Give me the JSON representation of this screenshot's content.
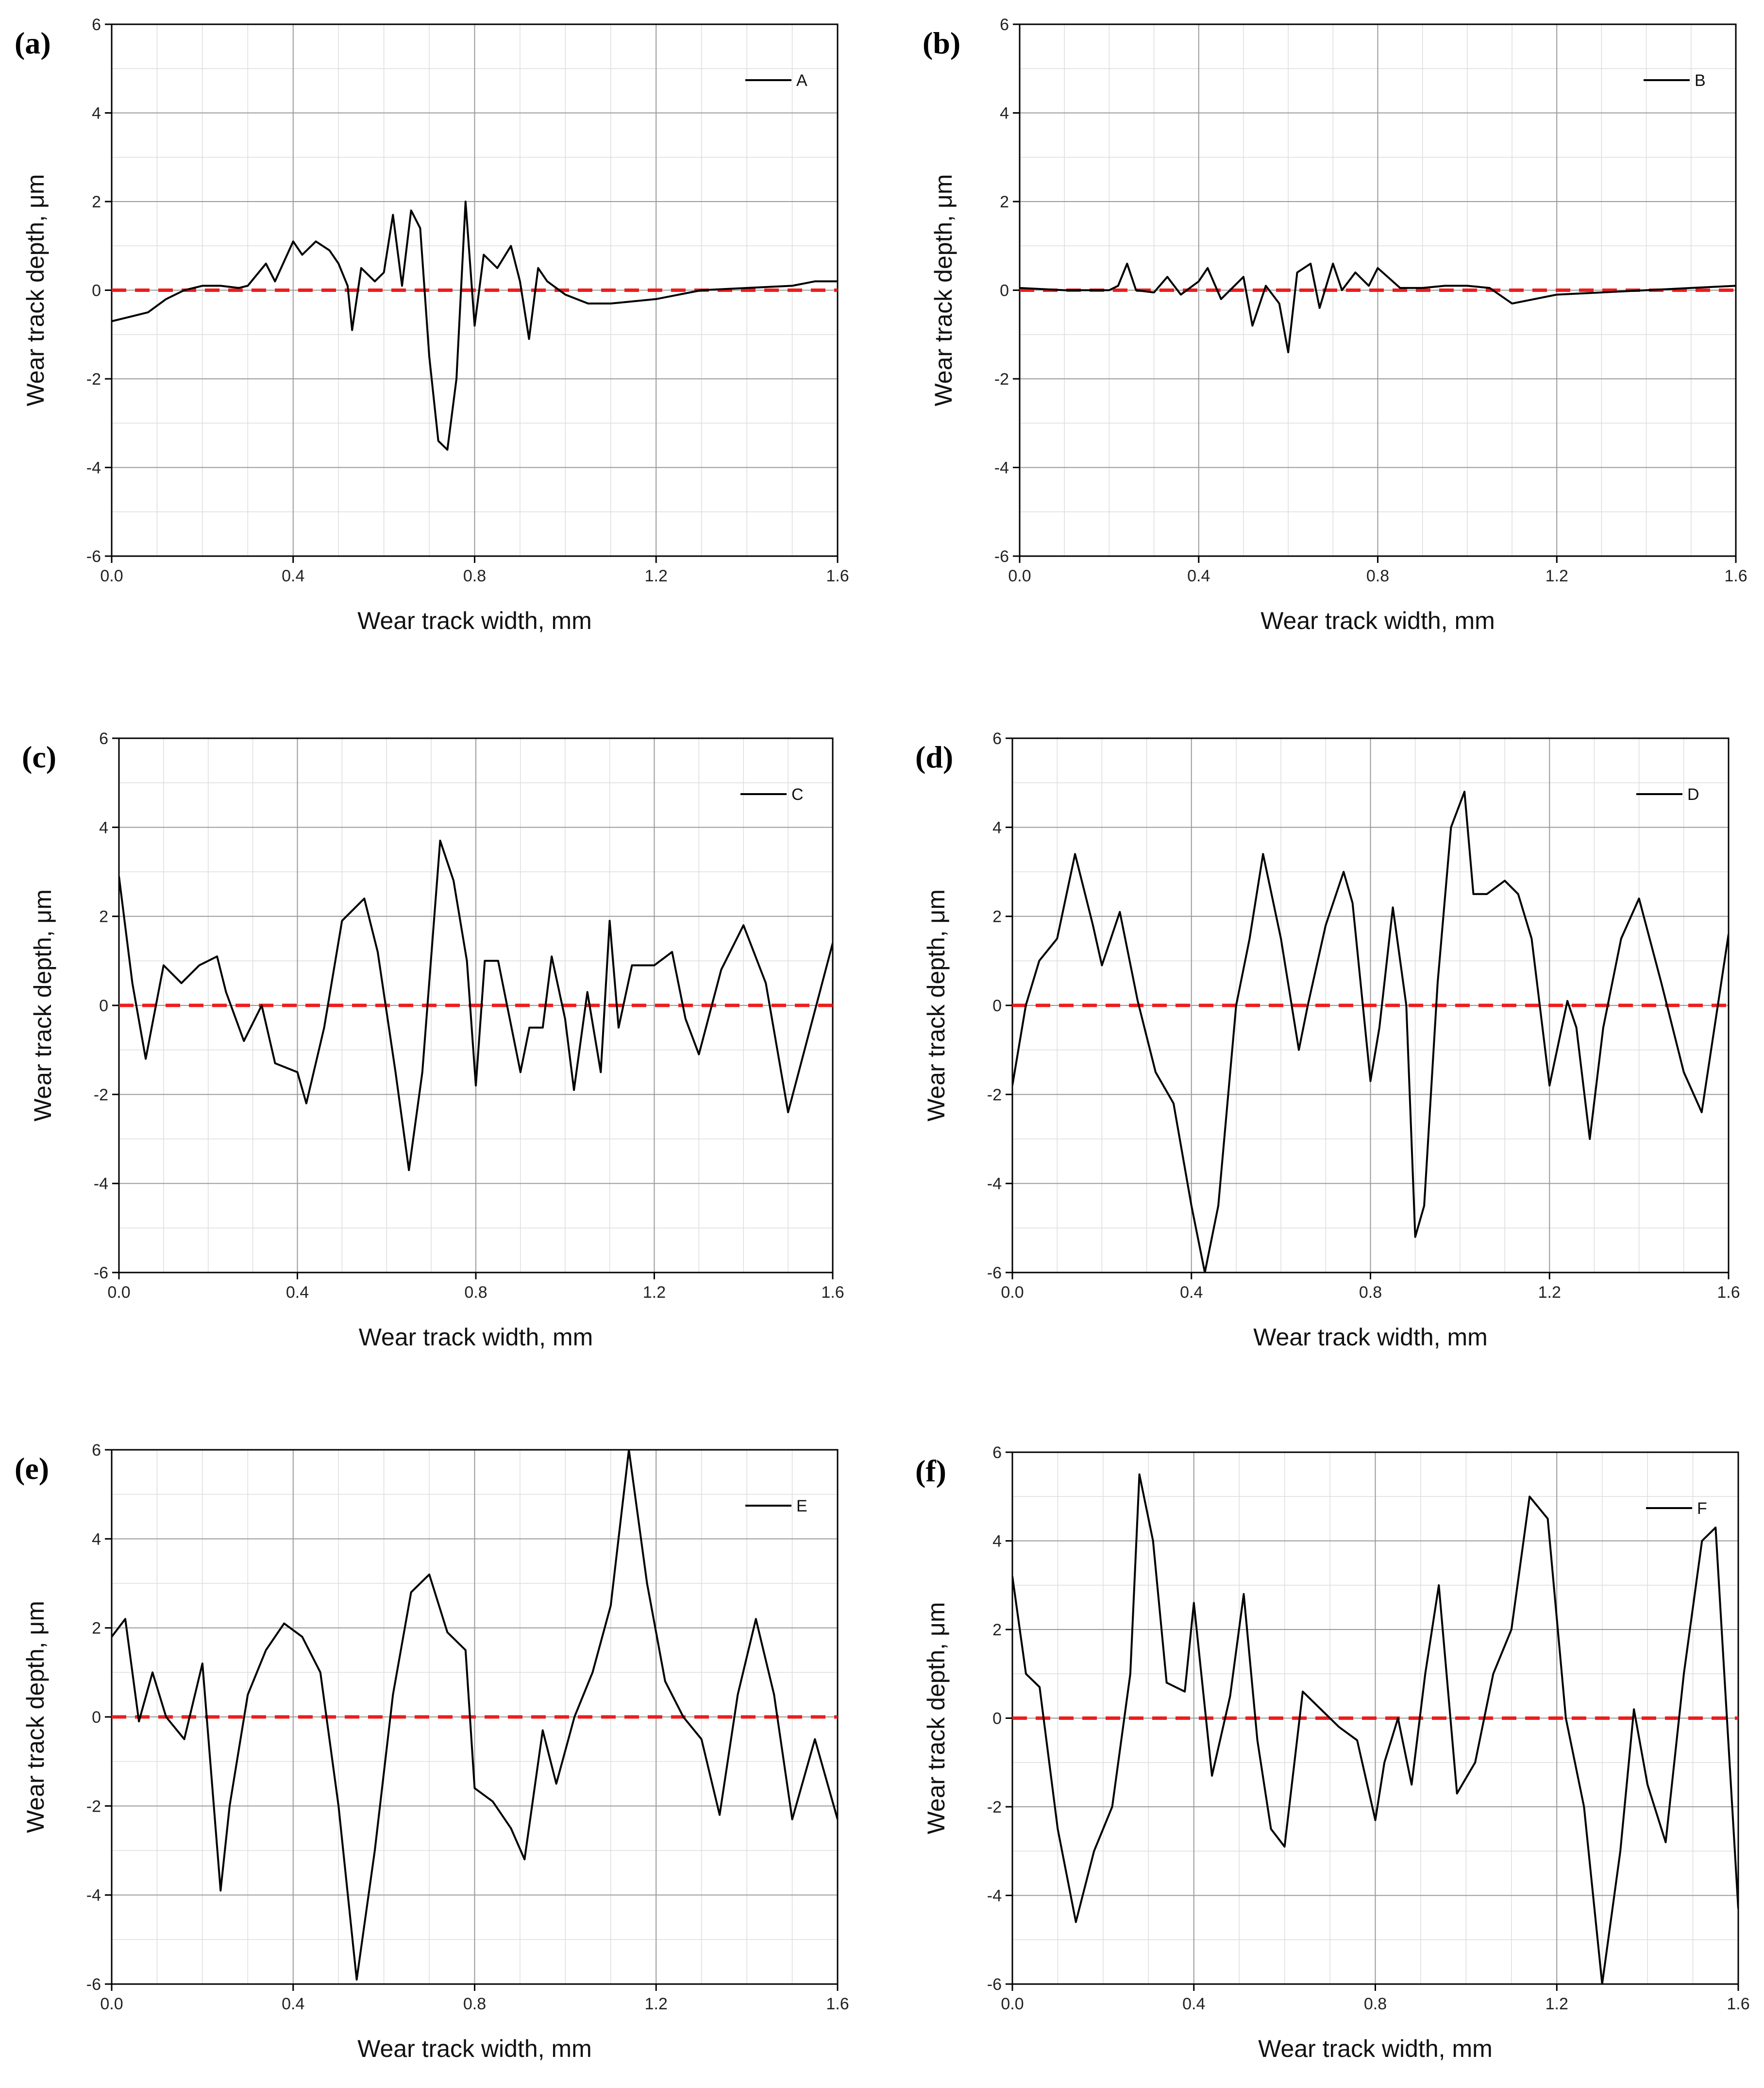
{
  "chart_data": [
    {
      "panel": "(a)",
      "type": "line",
      "legend": "A",
      "xlabel": "Wear track width, mm",
      "ylabel": "Wear track depth, μm",
      "xlim": [
        0,
        1.6
      ],
      "ylim": [
        -6,
        6
      ],
      "xticks": [
        "0.0",
        "0.4",
        "0.8",
        "1.2",
        "1.6"
      ],
      "yticks": [
        "-6",
        "-4",
        "-2",
        "0",
        "2",
        "4",
        "6"
      ],
      "reference_line": 0,
      "x": [
        0,
        0.04,
        0.08,
        0.12,
        0.16,
        0.2,
        0.24,
        0.28,
        0.3,
        0.34,
        0.36,
        0.4,
        0.42,
        0.45,
        0.48,
        0.5,
        0.52,
        0.53,
        0.55,
        0.58,
        0.6,
        0.62,
        0.64,
        0.66,
        0.68,
        0.7,
        0.72,
        0.74,
        0.76,
        0.78,
        0.8,
        0.82,
        0.85,
        0.88,
        0.9,
        0.92,
        0.94,
        0.96,
        1.0,
        1.05,
        1.1,
        1.2,
        1.3,
        1.4,
        1.5,
        1.55,
        1.6
      ],
      "values": [
        -0.7,
        -0.6,
        -0.5,
        -0.2,
        0,
        0.1,
        0.1,
        0.05,
        0.1,
        0.6,
        0.2,
        1.1,
        0.8,
        1.1,
        0.9,
        0.6,
        0.1,
        -0.9,
        0.5,
        0.2,
        0.4,
        1.7,
        0.1,
        1.8,
        1.4,
        -1.5,
        -3.4,
        -3.6,
        -2.0,
        2.0,
        -0.8,
        0.8,
        0.5,
        1.0,
        0.2,
        -1.1,
        0.5,
        0.2,
        -0.1,
        -0.3,
        -0.3,
        -0.2,
        0,
        0.05,
        0.1,
        0.2,
        0.2
      ]
    },
    {
      "panel": "(b)",
      "type": "line",
      "legend": "B",
      "xlabel": "Wear track width, mm",
      "ylabel": "Wear track depth, μm",
      "xlim": [
        0,
        1.6
      ],
      "ylim": [
        -6,
        6
      ],
      "xticks": [
        "0.0",
        "0.4",
        "0.8",
        "1.2",
        "1.6"
      ],
      "yticks": [
        "-6",
        "-4",
        "-2",
        "0",
        "2",
        "4",
        "6"
      ],
      "reference_line": 0,
      "x": [
        0,
        0.1,
        0.2,
        0.22,
        0.24,
        0.26,
        0.3,
        0.33,
        0.36,
        0.4,
        0.42,
        0.45,
        0.5,
        0.52,
        0.55,
        0.58,
        0.6,
        0.62,
        0.65,
        0.67,
        0.7,
        0.72,
        0.75,
        0.78,
        0.8,
        0.85,
        0.9,
        0.95,
        1.0,
        1.05,
        1.1,
        1.15,
        1.2,
        1.3,
        1.4,
        1.5,
        1.6
      ],
      "values": [
        0.05,
        0,
        0,
        0.1,
        0.6,
        0,
        -0.05,
        0.3,
        -0.1,
        0.2,
        0.5,
        -0.2,
        0.3,
        -0.8,
        0.1,
        -0.3,
        -1.4,
        0.4,
        0.6,
        -0.4,
        0.6,
        0,
        0.4,
        0.1,
        0.5,
        0.05,
        0.05,
        0.1,
        0.1,
        0.05,
        -0.3,
        -0.2,
        -0.1,
        -0.05,
        0,
        0.05,
        0.1
      ]
    },
    {
      "panel": "(c)",
      "type": "line",
      "legend": "C",
      "xlabel": "Wear track width, mm",
      "ylabel": "Wear track depth, μm",
      "xlim": [
        0,
        1.6
      ],
      "ylim": [
        -6,
        6
      ],
      "xticks": [
        "0.0",
        "0.4",
        "0.8",
        "1.2",
        "1.6"
      ],
      "yticks": [
        "-6",
        "-4",
        "-2",
        "0",
        "2",
        "4",
        "6"
      ],
      "reference_line": 0,
      "x": [
        0,
        0.03,
        0.06,
        0.1,
        0.14,
        0.18,
        0.22,
        0.24,
        0.28,
        0.32,
        0.35,
        0.4,
        0.42,
        0.46,
        0.5,
        0.55,
        0.58,
        0.62,
        0.65,
        0.68,
        0.72,
        0.75,
        0.78,
        0.8,
        0.82,
        0.85,
        0.88,
        0.9,
        0.92,
        0.95,
        0.97,
        1.0,
        1.02,
        1.05,
        1.08,
        1.1,
        1.12,
        1.15,
        1.2,
        1.24,
        1.27,
        1.3,
        1.35,
        1.4,
        1.45,
        1.5,
        1.55,
        1.6
      ],
      "values": [
        2.9,
        0.5,
        -1.2,
        0.9,
        0.5,
        0.9,
        1.1,
        0.3,
        -0.8,
        0,
        -1.3,
        -1.5,
        -2.2,
        -0.5,
        1.9,
        2.4,
        1.2,
        -1.5,
        -3.7,
        -1.5,
        3.7,
        2.8,
        1.0,
        -1.8,
        1.0,
        1.0,
        -0.5,
        -1.5,
        -0.5,
        -0.5,
        1.1,
        -0.3,
        -1.9,
        0.3,
        -1.5,
        1.9,
        -0.5,
        0.9,
        0.9,
        1.2,
        -0.3,
        -1.1,
        0.8,
        1.8,
        0.5,
        -2.4,
        -0.5,
        1.4
      ]
    },
    {
      "panel": "(d)",
      "type": "line",
      "legend": "D",
      "xlabel": "Wear track width, mm",
      "ylabel": "Wear track depth, μm",
      "xlim": [
        0,
        1.6
      ],
      "ylim": [
        -6,
        6
      ],
      "xticks": [
        "0.0",
        "0.4",
        "0.8",
        "1.2",
        "1.6"
      ],
      "yticks": [
        "-6",
        "-4",
        "-2",
        "0",
        "2",
        "4",
        "6"
      ],
      "reference_line": 0,
      "x": [
        0,
        0.03,
        0.06,
        0.1,
        0.14,
        0.18,
        0.2,
        0.24,
        0.28,
        0.32,
        0.36,
        0.4,
        0.43,
        0.46,
        0.5,
        0.53,
        0.56,
        0.6,
        0.64,
        0.66,
        0.7,
        0.74,
        0.76,
        0.8,
        0.82,
        0.85,
        0.88,
        0.9,
        0.92,
        0.95,
        0.98,
        1.01,
        1.03,
        1.06,
        1.1,
        1.13,
        1.16,
        1.2,
        1.24,
        1.26,
        1.29,
        1.32,
        1.36,
        1.4,
        1.45,
        1.5,
        1.54,
        1.6
      ],
      "values": [
        -1.8,
        0,
        1.0,
        1.5,
        3.4,
        1.8,
        0.9,
        2.1,
        0.1,
        -1.5,
        -2.2,
        -4.5,
        -6.0,
        -4.5,
        0,
        1.5,
        3.4,
        1.5,
        -1.0,
        0,
        1.8,
        3.0,
        2.3,
        -1.7,
        -0.5,
        2.2,
        0,
        -5.2,
        -4.5,
        0.5,
        4.0,
        4.8,
        2.5,
        2.5,
        2.8,
        2.5,
        1.5,
        -1.8,
        0.1,
        -0.5,
        -3.0,
        -0.5,
        1.5,
        2.4,
        0.5,
        -1.5,
        -2.4,
        1.6
      ]
    },
    {
      "panel": "(e)",
      "type": "line",
      "legend": "E",
      "xlabel": "Wear track width, mm",
      "ylabel": "Wear track depth, μm",
      "xlim": [
        0,
        1.6
      ],
      "ylim": [
        -6,
        6
      ],
      "xticks": [
        "0.0",
        "0.4",
        "0.8",
        "1.2",
        "1.6"
      ],
      "yticks": [
        "-6",
        "-4",
        "-2",
        "0",
        "2",
        "4",
        "6"
      ],
      "reference_line": 0,
      "x": [
        0,
        0.03,
        0.06,
        0.09,
        0.12,
        0.16,
        0.2,
        0.24,
        0.26,
        0.3,
        0.34,
        0.38,
        0.42,
        0.46,
        0.5,
        0.54,
        0.58,
        0.62,
        0.66,
        0.7,
        0.74,
        0.78,
        0.8,
        0.84,
        0.88,
        0.91,
        0.95,
        0.98,
        1.02,
        1.06,
        1.1,
        1.14,
        1.18,
        1.22,
        1.26,
        1.3,
        1.34,
        1.38,
        1.42,
        1.46,
        1.5,
        1.55,
        1.6
      ],
      "values": [
        1.8,
        2.2,
        -0.1,
        1.0,
        0,
        -0.5,
        1.2,
        -3.9,
        -2.0,
        0.5,
        1.5,
        2.1,
        1.8,
        1.0,
        -2.0,
        -5.9,
        -3.0,
        0.5,
        2.8,
        3.2,
        1.9,
        1.5,
        -1.6,
        -1.9,
        -2.5,
        -3.2,
        -0.3,
        -1.5,
        0,
        1.0,
        2.5,
        6.0,
        3.0,
        0.8,
        0,
        -0.5,
        -2.2,
        0.5,
        2.2,
        0.5,
        -2.3,
        -0.5,
        -2.3
      ]
    },
    {
      "panel": "(f)",
      "type": "line",
      "legend": "F",
      "xlabel": "Wear track width, mm",
      "ylabel": "Wear track depth, μm",
      "xlim": [
        0,
        1.6
      ],
      "ylim": [
        -6,
        6
      ],
      "xticks": [
        "0.0",
        "0.4",
        "0.8",
        "1.2",
        "1.6"
      ],
      "yticks": [
        "-6",
        "-4",
        "-2",
        "0",
        "2",
        "4",
        "6"
      ],
      "reference_line": 0,
      "x": [
        0,
        0.03,
        0.06,
        0.1,
        0.14,
        0.18,
        0.22,
        0.26,
        0.28,
        0.31,
        0.34,
        0.38,
        0.4,
        0.44,
        0.48,
        0.51,
        0.54,
        0.57,
        0.6,
        0.64,
        0.68,
        0.72,
        0.76,
        0.8,
        0.82,
        0.85,
        0.88,
        0.91,
        0.94,
        0.98,
        1.02,
        1.06,
        1.1,
        1.14,
        1.18,
        1.22,
        1.26,
        1.3,
        1.34,
        1.37,
        1.4,
        1.44,
        1.48,
        1.52,
        1.55,
        1.6
      ],
      "values": [
        3.2,
        1.0,
        0.7,
        -2.5,
        -4.6,
        -3.0,
        -2.0,
        1.0,
        5.5,
        4.0,
        0.8,
        0.6,
        2.6,
        -1.3,
        0.5,
        2.8,
        -0.5,
        -2.5,
        -2.9,
        0.6,
        0.2,
        -0.2,
        -0.5,
        -2.3,
        -1.0,
        0,
        -1.5,
        1.0,
        3.0,
        -1.7,
        -1.0,
        1.0,
        2.0,
        5.0,
        4.5,
        0,
        -2.0,
        -6.0,
        -3.0,
        0.2,
        -1.5,
        -2.8,
        1.0,
        4.0,
        4.3,
        -4.3
      ]
    }
  ]
}
